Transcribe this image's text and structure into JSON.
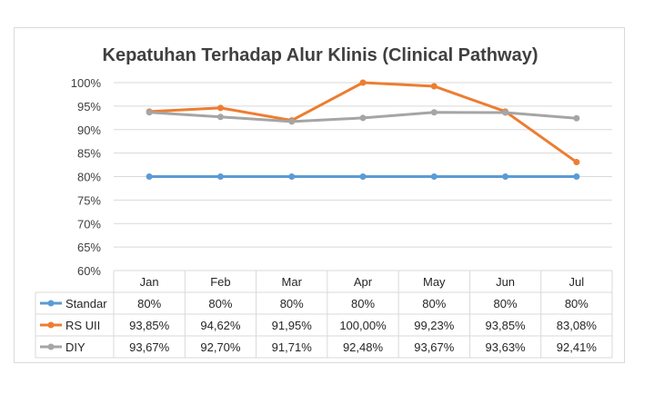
{
  "chart_data": {
    "type": "line",
    "title": "Kepatuhan Terhadap Alur Klinis (Clinical Pathway)",
    "categories": [
      "Jan",
      "Feb",
      "Mar",
      "Apr",
      "May",
      "Jun",
      "Jul"
    ],
    "yticks": [
      "60%",
      "65%",
      "70%",
      "75%",
      "80%",
      "85%",
      "90%",
      "95%",
      "100%"
    ],
    "ylim": [
      60,
      100
    ],
    "grid": true,
    "legend": "data-table",
    "series": [
      {
        "name": "Standar",
        "color": "#5b9bd5",
        "values": [
          80,
          80,
          80,
          80,
          80,
          80,
          80
        ],
        "labels": [
          "80%",
          "80%",
          "80%",
          "80%",
          "80%",
          "80%",
          "80%"
        ]
      },
      {
        "name": "RS UII",
        "color": "#ed7d31",
        "values": [
          93.85,
          94.62,
          91.95,
          100.0,
          99.23,
          93.85,
          83.08
        ],
        "labels": [
          "93,85%",
          "94,62%",
          "91,95%",
          "100,00%",
          "99,23%",
          "93,85%",
          "83,08%"
        ]
      },
      {
        "name": "DIY",
        "color": "#a5a5a5",
        "values": [
          93.67,
          92.7,
          91.71,
          92.48,
          93.67,
          93.63,
          92.41
        ],
        "labels": [
          "93,67%",
          "92,70%",
          "91,71%",
          "92,48%",
          "93,67%",
          "93,63%",
          "92,41%"
        ]
      }
    ]
  }
}
